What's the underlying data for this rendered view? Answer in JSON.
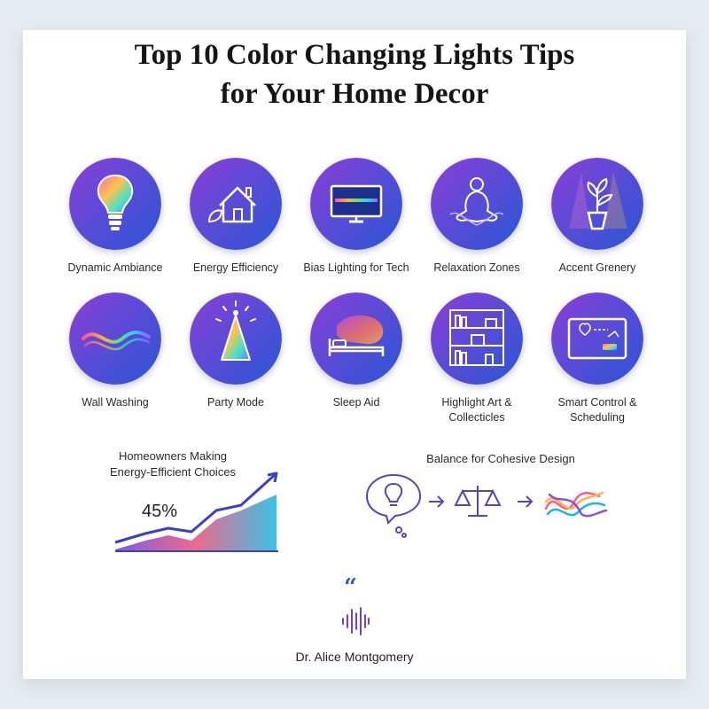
{
  "title": {
    "line1": "Top 10 Color Changing Lights Tips",
    "line2": "for Your Home Decor"
  },
  "tips": [
    {
      "label": "Dynamic Ambiance",
      "icon": "lightbulb-icon"
    },
    {
      "label": "Energy Efficiency",
      "icon": "house-leaf-icon"
    },
    {
      "label": "Bias Lighting for Tech",
      "icon": "monitor-icon"
    },
    {
      "label": "Relaxation Zones",
      "icon": "meditation-icon"
    },
    {
      "label": "Accent Grenery",
      "icon": "potted-plant-icon"
    },
    {
      "label": "Wall Washing",
      "icon": "light-wave-icon"
    },
    {
      "label": "Party Mode",
      "icon": "party-hat-icon"
    },
    {
      "label": "Sleep Aid",
      "icon": "bed-icon"
    },
    {
      "label_line1": "Highlight Art &",
      "label_line2": "Collecticles",
      "icon": "shelf-icon"
    },
    {
      "label_line1": "Smart Control &",
      "label_line2": "Scheduling",
      "icon": "smart-panel-icon"
    }
  ],
  "stat": {
    "title_line1": "Homeowners Making",
    "title_line2": "Energy-Efficient Choices",
    "value": "45%",
    "icon": "rising-chart-icon"
  },
  "balance": {
    "title": "Balance for Cohesive Design",
    "icons": [
      "idea-bulb-icon",
      "arrow-right-icon",
      "scale-icon",
      "arrow-right-icon",
      "color-waves-icon"
    ]
  },
  "quote": {
    "mark": "“",
    "icon": "soundwave-icon",
    "author": "Dr. Alice Montgomery"
  },
  "colors": {
    "circle_start": "#7a3fd0",
    "circle_end": "#2a5bd8",
    "accent": "#3d57c9"
  }
}
